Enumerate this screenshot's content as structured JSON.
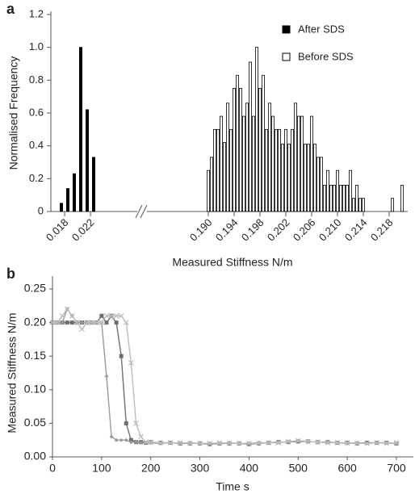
{
  "chart_data": [
    {
      "label": "a",
      "type": "bar",
      "xlabel": "Measured Stiffness N/m",
      "ylabel": "Normalised Frequency",
      "xlim": [
        [
          0.016,
          0.0295
        ],
        [
          0.181,
          0.2205
        ]
      ],
      "xticks": [
        [
          0.018,
          0.022
        ],
        [
          {
            "value": 0.19,
            "label": "0.190"
          },
          0.194,
          0.198,
          0.202,
          0.206,
          {
            "value": 0.21,
            "label": "0.210"
          },
          0.214,
          0.218
        ]
      ],
      "ylim": [
        0,
        1.2
      ],
      "yticks": [
        0,
        0.2,
        0.4,
        0.6,
        0.8,
        {
          "value": 1,
          "label": "1.0"
        },
        1.2
      ],
      "legend": "upper right",
      "series": [
        {
          "name": "After SDS",
          "color": "#000000",
          "x": [
            0.0175,
            0.0185,
            0.0195,
            0.0205,
            0.0215,
            0.0225
          ],
          "values": [
            0.05,
            0.14,
            0.23,
            1.0,
            0.62,
            0.33
          ]
        },
        {
          "name": "Before SDS",
          "color": "#ffffff",
          "x": [
            0.19,
            0.1905,
            0.191,
            0.1915,
            0.192,
            0.1925,
            0.193,
            0.1935,
            0.194,
            0.1945,
            0.195,
            0.1955,
            0.196,
            0.1965,
            0.197,
            0.1975,
            0.198,
            0.1985,
            0.199,
            0.1995,
            0.2,
            0.2005,
            0.201,
            0.2015,
            0.202,
            0.2025,
            0.203,
            0.2035,
            0.204,
            0.2045,
            0.205,
            0.2055,
            0.206,
            0.2065,
            0.207,
            0.2075,
            0.208,
            0.2085,
            0.209,
            0.2095,
            0.21,
            0.2105,
            0.211,
            0.2115,
            0.212,
            0.2125,
            0.213,
            0.2135,
            0.214,
            0.2185,
            0.22
          ],
          "values": [
            0.25,
            0.33,
            0.5,
            0.5,
            0.58,
            0.42,
            0.66,
            0.5,
            0.75,
            0.83,
            0.75,
            0.58,
            0.66,
            0.91,
            0.58,
            1.0,
            0.75,
            0.83,
            0.5,
            0.66,
            0.58,
            0.5,
            0.5,
            0.41,
            0.5,
            0.41,
            0.5,
            0.66,
            0.58,
            0.58,
            0.41,
            0.41,
            0.58,
            0.41,
            0.33,
            0.33,
            0.16,
            0.25,
            0.16,
            0.16,
            0.25,
            0.16,
            0.16,
            0.16,
            0.25,
            0.08,
            0.16,
            0.08,
            0.08,
            0.08,
            0.16
          ]
        }
      ]
    },
    {
      "label": "b",
      "type": "line",
      "xlabel": "Time s",
      "ylabel": "Measured Stiffness N/m",
      "xlim": [
        0,
        700
      ],
      "xticks": [
        0,
        100,
        200,
        300,
        400,
        500,
        600,
        700
      ],
      "ylim": [
        0,
        0.25
      ],
      "yticks": [
        {
          "value": 0,
          "label": "0.00"
        },
        {
          "value": 0.05,
          "label": "0.05"
        },
        {
          "value": 0.1,
          "label": "0.10"
        },
        {
          "value": 0.15,
          "label": "0.15"
        },
        {
          "value": 0.2,
          "label": "0.20"
        },
        {
          "value": 0.25,
          "label": "0.25"
        }
      ],
      "x": [
        0,
        10,
        20,
        30,
        40,
        50,
        60,
        70,
        80,
        90,
        100,
        110,
        120,
        130,
        140,
        150,
        160,
        170,
        180,
        190,
        200,
        220,
        240,
        260,
        280,
        300,
        320,
        340,
        360,
        380,
        400,
        420,
        440,
        460,
        480,
        500,
        520,
        540,
        560,
        580,
        600,
        620,
        640,
        660,
        680,
        700
      ],
      "series": [
        {
          "color": "#6e6e6e",
          "marker": "square",
          "values": [
            0.2,
            0.2,
            0.2,
            0.2,
            0.2,
            0.2,
            0.2,
            0.2,
            0.2,
            0.2,
            0.21,
            0.2,
            0.21,
            0.2,
            0.15,
            0.05,
            0.025,
            0.022,
            0.022,
            0.021,
            0.022,
            0.021,
            0.021,
            0.02,
            0.02,
            0.02,
            0.019,
            0.02,
            0.02,
            0.02,
            0.019,
            0.02,
            0.021,
            0.022,
            0.022,
            0.023,
            0.023,
            0.022,
            0.022,
            0.021,
            0.021,
            0.02,
            0.021,
            0.021,
            0.021,
            0.02
          ]
        },
        {
          "color": "#9a9a9a",
          "marker": "diamond",
          "values": [
            0.2,
            0.2,
            0.2,
            0.22,
            0.21,
            0.2,
            0.2,
            0.2,
            0.2,
            0.2,
            0.2,
            0.12,
            0.03,
            0.025,
            0.025,
            0.025,
            0.022,
            0.022,
            0.021,
            0.021,
            0.021,
            0.02,
            0.021,
            0.02,
            0.021,
            0.02,
            0.02,
            0.02,
            0.021,
            0.02,
            0.02,
            0.021,
            0.021,
            0.022,
            0.022,
            0.024,
            0.023,
            0.022,
            0.022,
            0.021,
            0.02,
            0.021,
            0.02,
            0.021,
            0.021,
            0.02
          ]
        },
        {
          "color": "#bdbdbd",
          "marker": "x",
          "values": [
            0.2,
            0.2,
            0.21,
            0.22,
            0.21,
            0.2,
            0.19,
            0.2,
            0.2,
            0.2,
            0.2,
            0.21,
            0.21,
            0.21,
            0.21,
            0.2,
            0.14,
            0.05,
            0.03,
            0.022,
            0.022,
            0.021,
            0.021,
            0.021,
            0.02,
            0.02,
            0.02,
            0.021,
            0.02,
            0.02,
            0.02,
            0.02,
            0.021,
            0.021,
            0.023,
            0.024,
            0.023,
            0.022,
            0.021,
            0.021,
            0.021,
            0.02,
            0.02,
            0.021,
            0.02,
            0.021
          ]
        }
      ]
    }
  ]
}
